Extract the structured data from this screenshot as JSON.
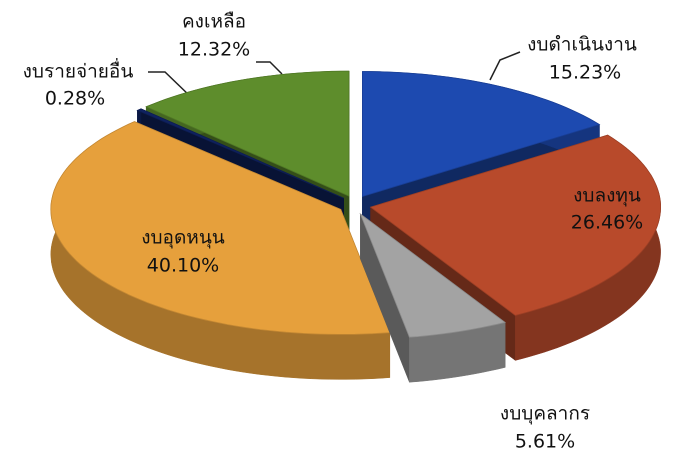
{
  "chart_data": {
    "type": "pie",
    "categories": [
      "งบดำเนินงาน",
      "งบลงทุน",
      "งบบุคลากร",
      "งบอุดหนุน",
      "งบรายจ่ายอื่น",
      "คงเหลือ"
    ],
    "values": [
      15.23,
      26.46,
      5.61,
      40.1,
      0.28,
      12.32
    ],
    "value_labels": [
      "15.23%",
      "26.46%",
      "5.61%",
      "40.10%",
      "0.28%",
      "12.32%"
    ],
    "colors": [
      "#1d4ab0",
      "#b84a2b",
      "#a3a3a3",
      "#e6a03c",
      "#0f2260",
      "#5e8d2c"
    ]
  }
}
